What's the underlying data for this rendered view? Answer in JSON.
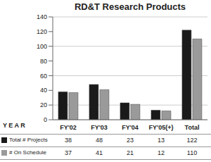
{
  "chart_data": {
    "type": "bar",
    "title": "RD&T Research Products",
    "x_label": "Y E A R",
    "categories": [
      "FY'02",
      "FY'03",
      "FY'04",
      "FY'05(+)",
      "Total"
    ],
    "series": [
      {
        "name": "Total # Projects",
        "color": "#1a1a1a",
        "values": [
          38,
          48,
          23,
          13,
          122
        ]
      },
      {
        "name": "# On Schedule",
        "color": "#9a9a9a",
        "values": [
          37,
          41,
          21,
          12,
          110
        ]
      }
    ],
    "ylim": [
      0,
      140
    ],
    "yticks": [
      0,
      20,
      40,
      60,
      80,
      100,
      120,
      140
    ],
    "grid": true
  }
}
